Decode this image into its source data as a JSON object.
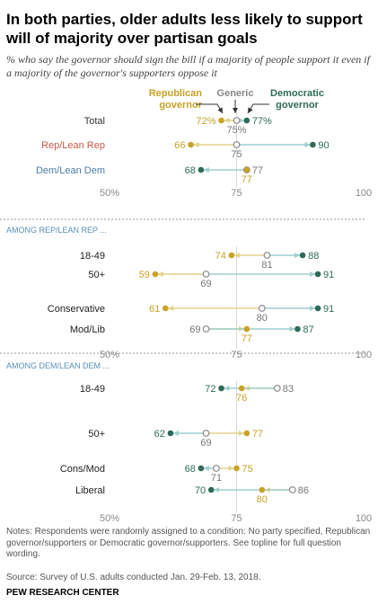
{
  "title": "In both parties, older adults less likely to support will of majority over partisan goals",
  "subtitle": "% who say the governor should sign the bill if a majority of people support it even if a majority of the governor's supporters oppose it",
  "legend": {
    "republican": "Republican governor",
    "generic": "Generic",
    "democratic": "Democratic governor"
  },
  "colors": {
    "republican": "#c9a227",
    "generic": "#8a8a8a",
    "democratic": "#2e6b58",
    "arrow_rep": "#e3d28d",
    "arrow_dem": "#9fcfcf",
    "section_label": "#5b8fb8",
    "party_rep": "#c8584a",
    "party_dem": "#4c7ca8"
  },
  "chart_data": [
    {
      "type": "dot",
      "title": "",
      "x_ticks": [
        "50%",
        "75",
        "100"
      ],
      "xlim": [
        50,
        100
      ],
      "series_order": [
        "republican",
        "generic",
        "democratic"
      ],
      "rows": [
        {
          "label": "Total",
          "republican": 72,
          "generic": 75,
          "democratic": 77,
          "rep_label": "72%",
          "gen_label": "75%",
          "dem_label": "77%"
        },
        {
          "label": "Rep/Lean Rep",
          "republican": 66,
          "generic": 75,
          "democratic": 90,
          "rep_label": "66",
          "gen_label": "75",
          "dem_label": "90"
        },
        {
          "label": "Dem/Lean Dem",
          "republican": 77,
          "generic": 77,
          "democratic": 68,
          "rep_label": "77",
          "gen_label": "77",
          "dem_label": "68"
        }
      ]
    },
    {
      "type": "dot",
      "title": "AMONG REP/LEAN REP ...",
      "x_ticks": [
        "50%",
        "75",
        "100"
      ],
      "xlim": [
        50,
        100
      ],
      "rows": [
        {
          "label": "18-49",
          "republican": 74,
          "generic": 81,
          "democratic": 88,
          "rep_label": "74",
          "gen_label": "81",
          "dem_label": "88"
        },
        {
          "label": "50+",
          "republican": 59,
          "generic": 69,
          "democratic": 91,
          "rep_label": "59",
          "gen_label": "69",
          "dem_label": "91"
        },
        {
          "label": "Conservative",
          "republican": 61,
          "generic": 80,
          "democratic": 91,
          "rep_label": "61",
          "gen_label": "80",
          "dem_label": "91"
        },
        {
          "label": "Mod/Lib",
          "republican": 77,
          "generic": 69,
          "democratic": 87,
          "rep_label": "77",
          "gen_label": "69",
          "dem_label": "87"
        }
      ]
    },
    {
      "type": "dot",
      "title": "AMONG DEM/LEAN DEM ...",
      "x_ticks": [
        "50%",
        "75",
        "100"
      ],
      "xlim": [
        50,
        100
      ],
      "rows": [
        {
          "label": "18-49",
          "republican": 76,
          "generic": 83,
          "democratic": 72,
          "rep_label": "76",
          "gen_label": "83",
          "dem_label": "72"
        },
        {
          "label": "50+",
          "republican": 77,
          "generic": 69,
          "democratic": 62,
          "rep_label": "77",
          "gen_label": "69",
          "dem_label": "62"
        },
        {
          "label": "Cons/Mod",
          "republican": 75,
          "generic": 71,
          "democratic": 68,
          "rep_label": "75",
          "gen_label": "71",
          "dem_label": "68"
        },
        {
          "label": "Liberal",
          "republican": 80,
          "generic": 86,
          "democratic": 70,
          "rep_label": "80",
          "gen_label": "86",
          "dem_label": "70"
        }
      ]
    }
  ],
  "notes": "Notes: Respondents were randomly assigned to a condition: No party specified, Republican governor/supporters or Democratic governor/supporters. See topline for full question wording.",
  "source": "Source: Survey of U.S. adults conducted Jan. 29-Feb. 13, 2018.",
  "org": "PEW RESEARCH CENTER"
}
